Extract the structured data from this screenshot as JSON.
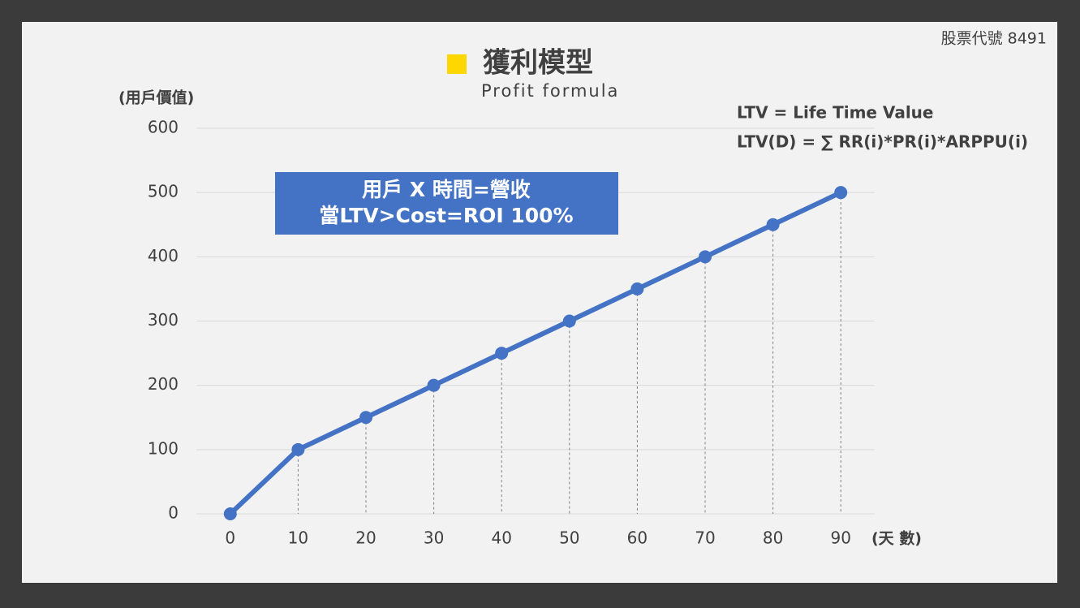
{
  "chart_data": {
    "type": "line",
    "title": "獲利模型",
    "subtitle": "Profit formula",
    "corner_note": "股票代號 8491",
    "y_label": "(用戶價值)",
    "x_label": "(天 數)",
    "formulas": [
      "LTV = Life Time Value",
      "LTV(D) = ∑ RR(i)*PR(i)*ARPPU(i)"
    ],
    "callout": [
      "用戶 X 時間=營收",
      "當LTV>Cost=ROI 100%"
    ],
    "x": [
      0,
      10,
      20,
      30,
      40,
      50,
      60,
      70,
      80,
      90
    ],
    "series": [
      {
        "color": "#4472c4",
        "values": [
          0,
          100,
          150,
          200,
          250,
          300,
          350,
          400,
          450,
          500
        ]
      }
    ],
    "xlim": [
      -5,
      95
    ],
    "xticks": [
      0,
      10,
      20,
      30,
      40,
      50,
      60,
      70,
      80,
      90
    ],
    "ylim": [
      0,
      600
    ],
    "yticks": [
      0,
      100,
      200,
      300,
      400,
      500,
      600
    ],
    "grid": true,
    "drop_lines": true
  }
}
